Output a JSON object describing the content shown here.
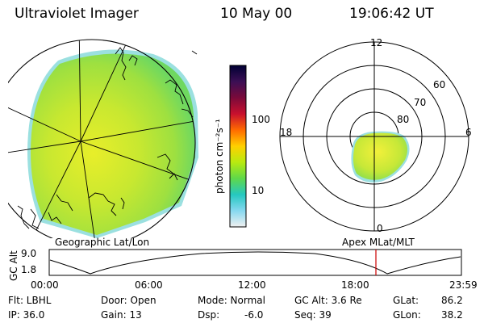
{
  "header": {
    "instrument": "Ultraviolet Imager",
    "date": "10 May 00",
    "time": "19:06:42 UT"
  },
  "colorbar": {
    "unit_label": "photon cm⁻²s⁻¹",
    "tick_labels": [
      "100",
      "10"
    ],
    "colors": [
      "#000033",
      "#3b0f55",
      "#7a0a3a",
      "#c8102e",
      "#ff6a00",
      "#ffd000",
      "#b8ea10",
      "#5fd84a",
      "#25c8c0",
      "#86d8f0",
      "#f0f0f0"
    ]
  },
  "polar": {
    "hour_labels": [
      "12",
      "18",
      "6",
      "0"
    ],
    "lat_labels": [
      "60",
      "70",
      "80"
    ]
  },
  "panel_labels": {
    "left": "Geographic Lat/Lon",
    "right": "Apex MLat/MLT"
  },
  "timeline": {
    "y_title": "GC Alt",
    "y_ticks": [
      "9.0",
      "1.8"
    ],
    "x_ticks": [
      "00:00",
      "06:00",
      "12:00",
      "18:00",
      "23:59"
    ],
    "current_marker_time": "19:06:42",
    "marker_color": "#cc0000"
  },
  "status": {
    "flt_label": "Flt: LBHL",
    "ip_label": "IP: 36.0",
    "door_label": "Door: Open",
    "gain_label": "Gain: 13",
    "mode_label": "Mode: Normal",
    "dsp_label": "Dsp:",
    "dsp_value": "-6.0",
    "gcalt_label": "GC Alt: 3.6 Re",
    "seq_label": "Seq: 39",
    "glat_label": "GLat:",
    "glat_value": "86.2",
    "glon_label": "GLon:",
    "glon_value": "38.2"
  }
}
